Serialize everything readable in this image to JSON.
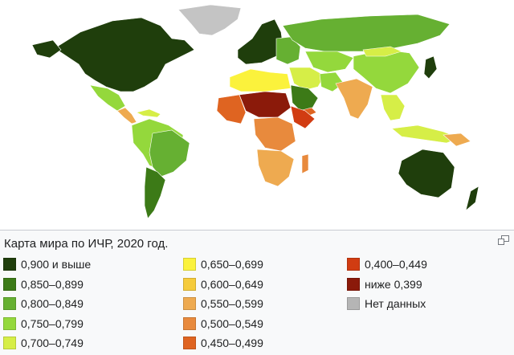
{
  "caption": {
    "title": "Карта мира по ИЧР, 2020 год.",
    "enlarge_icon": "enlarge-icon"
  },
  "legend": {
    "columns": [
      [
        {
          "label": "0,900 и выше",
          "color": "#1f3e0c"
        },
        {
          "label": "0,850–0,899",
          "color": "#3c7a17"
        },
        {
          "label": "0,800–0,849",
          "color": "#66b032"
        },
        {
          "label": "0,750–0,799",
          "color": "#94d83c"
        },
        {
          "label": "0,700–0,749",
          "color": "#d6ee47"
        }
      ],
      [
        {
          "label": "0,650–0,699",
          "color": "#fbf23c"
        },
        {
          "label": "0,600–0,649",
          "color": "#f5cb3b"
        },
        {
          "label": "0,550–0,599",
          "color": "#eeaa50"
        },
        {
          "label": "0,500–0,549",
          "color": "#e88a3d"
        },
        {
          "label": "0,450–0,499",
          "color": "#df6421"
        }
      ],
      [
        {
          "label": "0,400–0,449",
          "color": "#d13c12"
        },
        {
          "label": "ниже 0,399",
          "color": "#8b1a0a"
        },
        {
          "label": "Нет данных",
          "color": "#b5b5b5"
        }
      ]
    ]
  },
  "map": {
    "ocean_color": "#ffffff",
    "border_color": "#ffffff"
  }
}
